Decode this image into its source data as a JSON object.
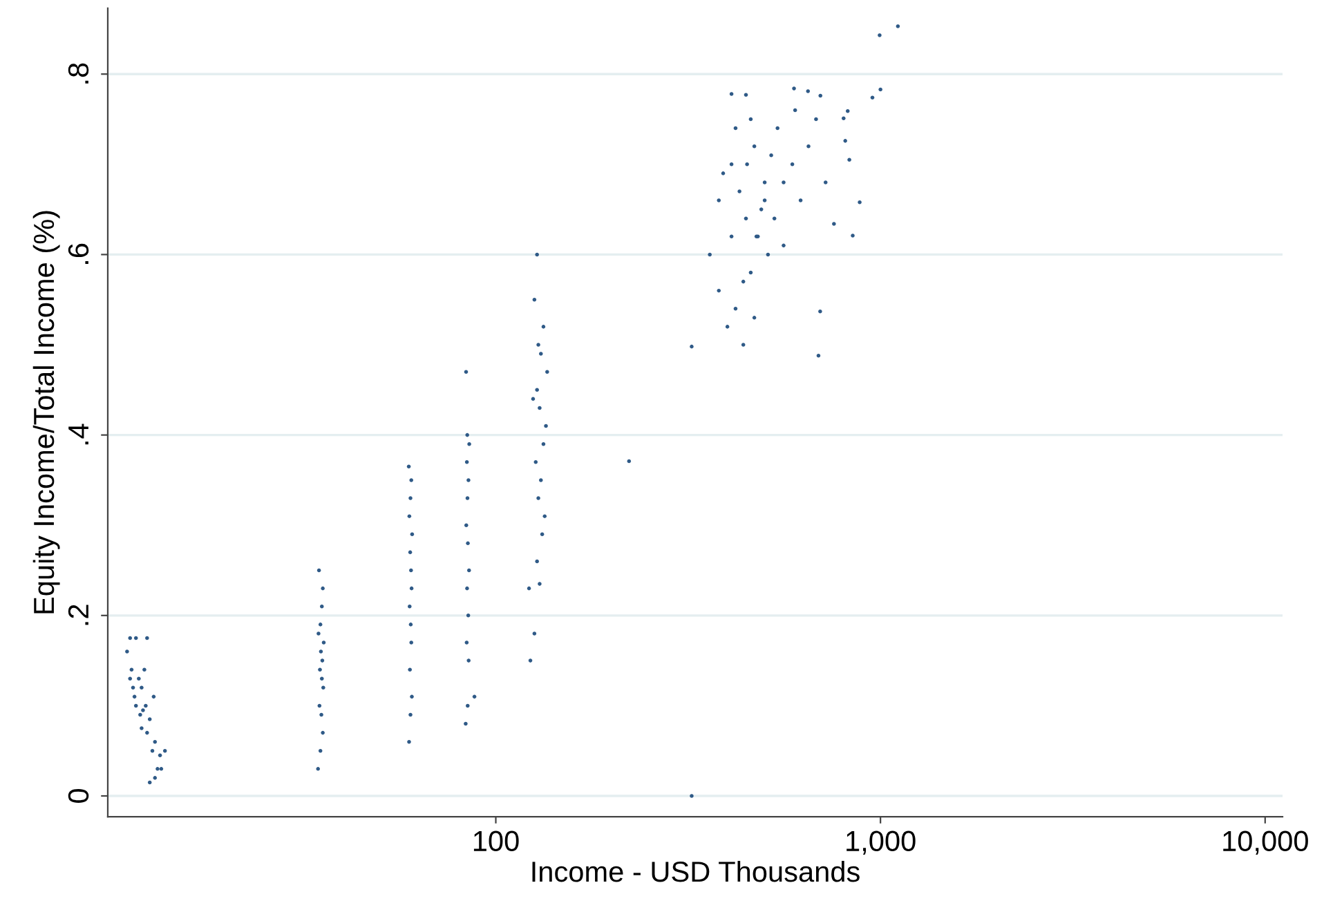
{
  "chart_data": {
    "type": "scatter",
    "xlabel": "Income - USD Thousands",
    "ylabel": "Equity Income/Total Income (%)",
    "log": "x",
    "xlim": [
      9.8,
      11100
    ],
    "xticks": [
      100,
      {
        "value": 1000,
        "label": "1,000"
      },
      {
        "value": 10000,
        "label": "10,000"
      }
    ],
    "ylim": [
      -0.023,
      0.873
    ],
    "yticks": [
      0,
      {
        "value": 0.2,
        "label": ".2"
      },
      {
        "value": 0.4,
        "label": ".4"
      },
      {
        "value": 0.6,
        "label": ".6"
      },
      {
        "value": 0.8,
        "label": ".8"
      }
    ],
    "grid": "y",
    "marker": "circle",
    "series": [
      {
        "color": "#2f5a87",
        "x": [
          11.2,
          11.6,
          12.4,
          11.0,
          11.3,
          11.8,
          12.0,
          11.5,
          12.3,
          11.9,
          12.6,
          12.4,
          13.0,
          12.8,
          13.4,
          13.8,
          13.2,
          12.6,
          13.0,
          12.0,
          11.6,
          11.2,
          12.2,
          12.9,
          13.5,
          11.4,
          12.1,
          34.5,
          35.0,
          35.5,
          35.2,
          34.8,
          35.6,
          35.3,
          34.9,
          35.4,
          35.1,
          35.7,
          34.6,
          35.0,
          35.3,
          35.5,
          34.7,
          59.5,
          60.0,
          60.5,
          59.8,
          60.3,
          60.1,
          59.7,
          60.4,
          60.2,
          59.9,
          60.6,
          59.6,
          60.0,
          60.3,
          59.4,
          83.5,
          84.5,
          85.0,
          84.0,
          84.8,
          84.2,
          85.2,
          84.6,
          83.8,
          84.4,
          84.9,
          84.1,
          85.3,
          84.3,
          88.0,
          83.7,
          123,
          126,
          130,
          128,
          132,
          134,
          129,
          131,
          127,
          133,
          135,
          130,
          125,
          128,
          136,
          131,
          129,
          133,
          122,
          126,
          128,
          323,
          222,
          323,
          360,
          380,
          400,
          420,
          440,
          460,
          476,
          490,
          510,
          530,
          560,
          590,
          620,
          650,
          680,
          720,
          380,
          410,
          447,
          470,
          500,
          540,
          600,
          420,
          450,
          480,
          520,
          390,
          430,
          460,
          500,
          440,
          470,
          410,
          560,
          410,
          447,
          596,
          648,
          698,
          697,
          690,
          757,
          802,
          810,
          822,
          830,
          847,
          883,
          953,
          995,
          1000,
          1110
        ],
        "values": [
          0.175,
          0.175,
          0.175,
          0.16,
          0.14,
          0.13,
          0.12,
          0.11,
          0.1,
          0.09,
          0.085,
          0.07,
          0.06,
          0.05,
          0.045,
          0.05,
          0.03,
          0.015,
          0.02,
          0.075,
          0.1,
          0.13,
          0.14,
          0.11,
          0.03,
          0.12,
          0.095,
          0.03,
          0.05,
          0.07,
          0.09,
          0.1,
          0.12,
          0.13,
          0.14,
          0.15,
          0.16,
          0.17,
          0.18,
          0.19,
          0.21,
          0.23,
          0.25,
          0.06,
          0.09,
          0.11,
          0.14,
          0.17,
          0.19,
          0.21,
          0.23,
          0.25,
          0.27,
          0.29,
          0.31,
          0.33,
          0.35,
          0.365,
          0.08,
          0.1,
          0.15,
          0.17,
          0.2,
          0.23,
          0.25,
          0.28,
          0.3,
          0.33,
          0.35,
          0.37,
          0.39,
          0.4,
          0.11,
          0.47,
          0.15,
          0.18,
          0.235,
          0.26,
          0.29,
          0.31,
          0.33,
          0.35,
          0.37,
          0.39,
          0.41,
          0.43,
          0.44,
          0.45,
          0.47,
          0.49,
          0.5,
          0.52,
          0.23,
          0.55,
          0.6,
          0.0,
          0.371,
          0.498,
          0.6,
          0.56,
          0.52,
          0.54,
          0.5,
          0.58,
          0.62,
          0.65,
          0.6,
          0.64,
          0.68,
          0.7,
          0.66,
          0.72,
          0.75,
          0.68,
          0.66,
          0.7,
          0.64,
          0.72,
          0.68,
          0.74,
          0.76,
          0.74,
          0.7,
          0.62,
          0.71,
          0.69,
          0.67,
          0.75,
          0.66,
          0.57,
          0.53,
          0.62,
          0.61,
          0.778,
          0.777,
          0.784,
          0.781,
          0.776,
          0.537,
          0.488,
          0.634,
          0.751,
          0.726,
          0.759,
          0.705,
          0.621,
          0.658,
          0.774,
          0.843,
          0.783,
          0.853
        ]
      }
    ]
  }
}
